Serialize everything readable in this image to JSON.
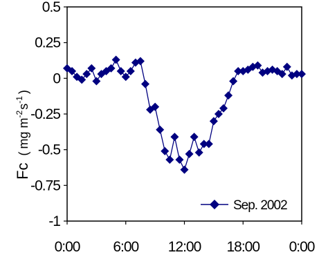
{
  "chart_data": {
    "type": "line",
    "ylabel": {
      "symbol": "Fc",
      "unit_open": "(",
      "unit_mg": "mg",
      "unit_m": "m",
      "unit_m_exp": "-2",
      "unit_s": "s",
      "unit_s_exp": "-1",
      "unit_close": ")"
    },
    "xlabel": "",
    "ylim": [
      -1,
      0.5
    ],
    "xlim": [
      0,
      24
    ],
    "y_ticks": [
      {
        "value": 0.5,
        "label": "0.5"
      },
      {
        "value": 0.25,
        "label": "0.25"
      },
      {
        "value": 0,
        "label": "0"
      },
      {
        "value": -0.25,
        "label": "-0.25"
      },
      {
        "value": -0.5,
        "label": "-0.5"
      },
      {
        "value": -0.75,
        "label": "-0.75"
      },
      {
        "value": -1,
        "label": "-1"
      }
    ],
    "x_ticks": [
      {
        "value": 0,
        "label": "0:00"
      },
      {
        "value": 6,
        "label": "6:00"
      },
      {
        "value": 12,
        "label": "12:00"
      },
      {
        "value": 18,
        "label": "18:00"
      },
      {
        "value": 24,
        "label": "0:00"
      }
    ],
    "grid": false,
    "legend_position": "bottom-right",
    "series": [
      {
        "name": "Sep. 2002",
        "color": "#000080",
        "marker": "diamond",
        "x": [
          0,
          0.5,
          1,
          1.5,
          2,
          2.5,
          3,
          3.5,
          4,
          4.5,
          5,
          5.5,
          6,
          6.5,
          7,
          7.5,
          8,
          8.5,
          9,
          9.5,
          10,
          10.5,
          11,
          11.5,
          12,
          12.5,
          13,
          13.5,
          14,
          14.5,
          15,
          15.5,
          16,
          16.5,
          17,
          17.5,
          18,
          18.5,
          19,
          19.5,
          20,
          20.5,
          21,
          21.5,
          22,
          22.5,
          23,
          23.5,
          24
        ],
        "y": [
          0.07,
          0.05,
          0.01,
          -0.01,
          0.03,
          0.07,
          -0.02,
          0.03,
          0.05,
          0.07,
          0.13,
          0.05,
          0.01,
          0.05,
          0.11,
          0.12,
          -0.04,
          -0.22,
          -0.2,
          -0.36,
          -0.51,
          -0.57,
          -0.41,
          -0.57,
          -0.64,
          -0.53,
          -0.41,
          -0.52,
          -0.46,
          -0.46,
          -0.3,
          -0.25,
          -0.21,
          -0.12,
          -0.02,
          0.05,
          0.05,
          0.06,
          0.08,
          0.09,
          0.04,
          0.05,
          0.06,
          0.05,
          0.03,
          0.08,
          0.02,
          0.03,
          0.03
        ]
      }
    ]
  }
}
